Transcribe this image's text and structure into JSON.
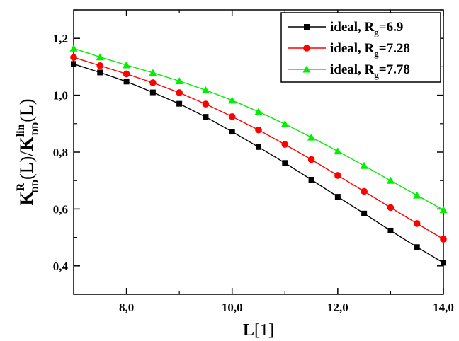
{
  "chart_data": {
    "type": "line",
    "xlabel": {
      "main": "L",
      "suffix": "[1]"
    },
    "ylabel": {
      "num_base": "K",
      "num_sup": "R",
      "num_sub": "DD",
      "num_arg": "(L)",
      "slash": "/",
      "den_base": "K",
      "den_sup": "lin",
      "den_sub": "DD",
      "den_arg": "(L)"
    },
    "xlim": [
      7.0,
      14.0
    ],
    "ylim": [
      0.3,
      1.3
    ],
    "xticks": [
      {
        "value": 8.0,
        "label": "8,0"
      },
      {
        "value": 10.0,
        "label": "10,0"
      },
      {
        "value": 12.0,
        "label": "12,0"
      },
      {
        "value": 14.0,
        "label": "14,0"
      }
    ],
    "yticks": [
      {
        "value": 0.4,
        "label": "0,4"
      },
      {
        "value": 0.6,
        "label": "0,6"
      },
      {
        "value": 0.8,
        "label": "0,8"
      },
      {
        "value": 1.0,
        "label": "1,0"
      },
      {
        "value": 1.2,
        "label": "1,2"
      }
    ],
    "grid": false,
    "legend_position": "top-right",
    "x": [
      7.0,
      7.5,
      8.0,
      8.5,
      9.0,
      9.5,
      10.0,
      10.5,
      11.0,
      11.5,
      12.0,
      12.5,
      13.0,
      13.5,
      14.0
    ],
    "series": [
      {
        "name": "ideal, R",
        "name_sub": "g",
        "name_suffix": "=6.9",
        "color": "#000000",
        "marker": "square",
        "values": [
          1.11,
          1.08,
          1.048,
          1.01,
          0.97,
          0.924,
          0.872,
          0.818,
          0.762,
          0.703,
          0.643,
          0.584,
          0.524,
          0.466,
          0.411
        ]
      },
      {
        "name": "ideal, R",
        "name_sub": "g",
        "name_suffix": "=7.28",
        "color": "#ff0000",
        "marker": "circle",
        "values": [
          1.133,
          1.104,
          1.075,
          1.044,
          1.009,
          0.969,
          0.925,
          0.878,
          0.827,
          0.774,
          0.718,
          0.662,
          0.605,
          0.549,
          0.494
        ]
      },
      {
        "name": "ideal, R",
        "name_sub": "g",
        "name_suffix": "=7.78",
        "color": "#00ee00",
        "marker": "triangle",
        "values": [
          1.165,
          1.134,
          1.106,
          1.079,
          1.05,
          1.018,
          0.982,
          0.942,
          0.899,
          0.852,
          0.803,
          0.752,
          0.7,
          0.648,
          0.597
        ]
      }
    ]
  }
}
